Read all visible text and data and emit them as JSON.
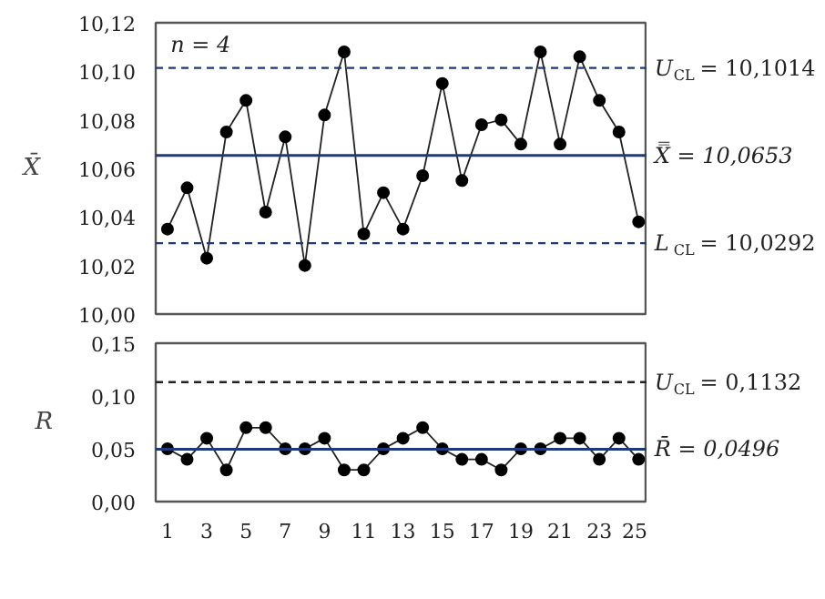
{
  "chart_data": [
    {
      "type": "line",
      "ylabel": "X̄",
      "annotations": [
        "n = 4"
      ],
      "tick_labels": "y",
      "grid": false,
      "marker": "circle",
      "line_style": "solid",
      "x": [
        1,
        2,
        3,
        4,
        5,
        6,
        7,
        8,
        9,
        10,
        11,
        12,
        13,
        14,
        15,
        16,
        17,
        18,
        19,
        20,
        21,
        22,
        23,
        24,
        25
      ],
      "series": [
        {
          "color": "#222222",
          "values": [
            10.035,
            10.052,
            10.023,
            10.075,
            10.088,
            10.042,
            10.073,
            10.02,
            10.082,
            10.108,
            10.033,
            10.05,
            10.035,
            10.057,
            10.095,
            10.055,
            10.078,
            10.08,
            10.07,
            10.108,
            10.07,
            10.106,
            10.088,
            10.075,
            10.038
          ]
        }
      ],
      "xlim": [
        0.4,
        25.45
      ],
      "ylim": [
        10.0,
        10.12
      ],
      "yticks": [
        {
          "value": 10.0,
          "label": "10,00"
        },
        {
          "value": 10.02,
          "label": "10,02"
        },
        {
          "value": 10.04,
          "label": "10,04"
        },
        {
          "value": 10.06,
          "label": "10,06"
        },
        {
          "value": 10.08,
          "label": "10,08"
        },
        {
          "value": 10.1,
          "label": "10,10"
        },
        {
          "value": 10.12,
          "label": "10,12"
        }
      ],
      "ref_lines": [
        {
          "axis": "y",
          "value": 10.1014,
          "label": "U$_{CL}$ = 10,1014",
          "color": "#1f3a7a",
          "line_style": "dashed"
        },
        {
          "axis": "y",
          "value": 10.0653,
          "label": "X̿ = 10,0653",
          "color": "#1f3a7a",
          "line_style": "solid"
        },
        {
          "axis": "y",
          "value": 10.0292,
          "label": "L$_{CL}$ = 10,0292",
          "color": "#1f3a7a",
          "line_style": "dashed"
        }
      ]
    },
    {
      "type": "line",
      "ylabel": "R",
      "grid": false,
      "marker": "circle",
      "line_style": "solid",
      "x": [
        1,
        2,
        3,
        4,
        5,
        6,
        7,
        8,
        9,
        10,
        11,
        12,
        13,
        14,
        15,
        16,
        17,
        18,
        19,
        20,
        21,
        22,
        23,
        24,
        25
      ],
      "series": [
        {
          "color": "#222222",
          "values": [
            0.05,
            0.04,
            0.06,
            0.03,
            0.07,
            0.07,
            0.05,
            0.05,
            0.06,
            0.03,
            0.03,
            0.05,
            0.06,
            0.07,
            0.05,
            0.04,
            0.04,
            0.03,
            0.05,
            0.05,
            0.06,
            0.06,
            0.04,
            0.06,
            0.04
          ]
        }
      ],
      "xlim": [
        0.4,
        25.45
      ],
      "xticks": [
        1,
        3,
        5,
        7,
        9,
        11,
        13,
        15,
        17,
        19,
        21,
        23,
        25
      ],
      "ylim": [
        0.0,
        0.15
      ],
      "yticks": [
        {
          "value": 0.0,
          "label": "0,00"
        },
        {
          "value": 0.05,
          "label": "0,05"
        },
        {
          "value": 0.1,
          "label": "0,10"
        },
        {
          "value": 0.15,
          "label": "0,15"
        }
      ],
      "ref_lines": [
        {
          "axis": "y",
          "value": 0.1132,
          "label": "U$_{CL}$ = 0,1132",
          "color": "#222222",
          "line_style": "dashed"
        },
        {
          "axis": "y",
          "value": 0.0496,
          "label": "R̄ = 0,0496",
          "color": "#1f3a7a",
          "line_style": "solid"
        }
      ]
    }
  ]
}
